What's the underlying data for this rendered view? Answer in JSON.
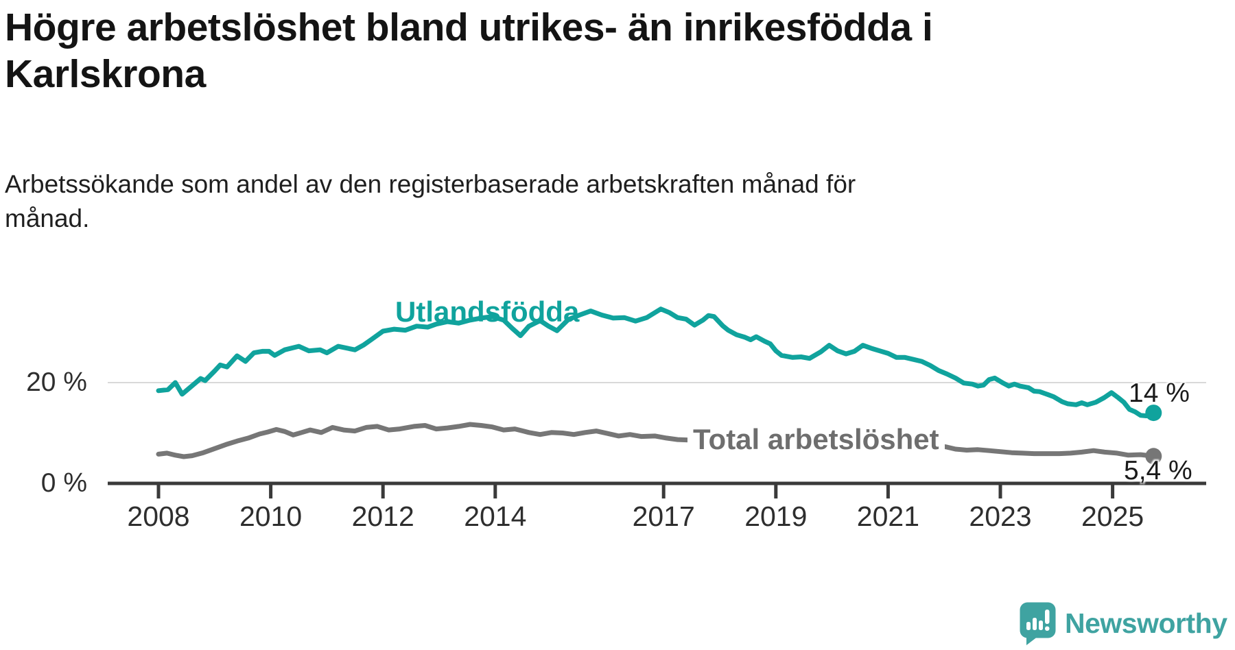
{
  "title": {
    "line1": "Högre arbetslöshet bland utrikes- än inrikesfödda i",
    "line2": "Karlskrona"
  },
  "subtitle": {
    "line1": "Arbetssökande som andel av den registerbaserade arbetskraften månad för",
    "line2": "månad."
  },
  "colors": {
    "teal": "#10a39d",
    "gray": "#767676",
    "axis": "#3a3a3a",
    "grid": "#d9d9d9",
    "value_label": "#1a1a1a",
    "logo_teal": "#3fa3a1"
  },
  "logo": {
    "text": "Newsworthy",
    "icon": "bar-chart-speech-bubble-icon"
  },
  "chart_data": {
    "type": "line",
    "title": "Högre arbetslöshet bland utrikes- än inrikesfödda i Karlskrona",
    "subtitle": "Arbetssökande som andel av den registerbaserade arbetskraften månad för månad.",
    "xlabel": "",
    "ylabel": "",
    "grid": "single horizontal gridline at 20 %",
    "legend_position": "labels drawn on lines",
    "x_axis": {
      "ticks": [
        2008,
        2010,
        2012,
        2014,
        2017,
        2019,
        2021,
        2023,
        2025
      ],
      "tick_labels": [
        "2008",
        "2010",
        "2012",
        "2014",
        "2017",
        "2019",
        "2021",
        "2023",
        "2025"
      ],
      "range": [
        2007.1,
        2026.7
      ]
    },
    "y_axis": {
      "ticks": [
        0,
        20
      ],
      "tick_labels": [
        "0 %",
        "20 %"
      ],
      "range": [
        0,
        36.5
      ]
    },
    "series": [
      {
        "name": "Utlandsfödda",
        "color": "#10a39d",
        "end_label": "14 %",
        "end_value": 14.0,
        "points": [
          [
            2008.0,
            18.4
          ],
          [
            2008.17,
            18.6
          ],
          [
            2008.3,
            20.0
          ],
          [
            2008.42,
            17.7
          ],
          [
            2008.58,
            19.2
          ],
          [
            2008.75,
            20.8
          ],
          [
            2008.83,
            20.4
          ],
          [
            2009.0,
            22.3
          ],
          [
            2009.1,
            23.5
          ],
          [
            2009.22,
            23.1
          ],
          [
            2009.4,
            25.3
          ],
          [
            2009.55,
            24.2
          ],
          [
            2009.7,
            25.9
          ],
          [
            2009.85,
            26.2
          ],
          [
            2009.97,
            26.2
          ],
          [
            2010.07,
            25.4
          ],
          [
            2010.25,
            26.5
          ],
          [
            2010.5,
            27.2
          ],
          [
            2010.68,
            26.3
          ],
          [
            2010.88,
            26.5
          ],
          [
            2011.0,
            25.9
          ],
          [
            2011.2,
            27.2
          ],
          [
            2011.5,
            26.5
          ],
          [
            2011.66,
            27.5
          ],
          [
            2011.8,
            28.6
          ],
          [
            2012.0,
            30.2
          ],
          [
            2012.2,
            30.6
          ],
          [
            2012.4,
            30.4
          ],
          [
            2012.6,
            31.2
          ],
          [
            2012.8,
            31.0
          ],
          [
            2012.95,
            31.6
          ],
          [
            2013.15,
            32.1
          ],
          [
            2013.35,
            31.8
          ],
          [
            2013.55,
            32.4
          ],
          [
            2013.75,
            32.8
          ],
          [
            2013.95,
            33.1
          ],
          [
            2014.15,
            32.4
          ],
          [
            2014.3,
            30.8
          ],
          [
            2014.45,
            29.3
          ],
          [
            2014.6,
            31.2
          ],
          [
            2014.8,
            32.3
          ],
          [
            2014.95,
            31.2
          ],
          [
            2015.1,
            30.3
          ],
          [
            2015.3,
            32.5
          ],
          [
            2015.5,
            33.4
          ],
          [
            2015.7,
            34.2
          ],
          [
            2015.9,
            33.4
          ],
          [
            2016.1,
            32.8
          ],
          [
            2016.3,
            32.9
          ],
          [
            2016.5,
            32.2
          ],
          [
            2016.7,
            32.9
          ],
          [
            2016.95,
            34.6
          ],
          [
            2017.1,
            33.9
          ],
          [
            2017.25,
            32.9
          ],
          [
            2017.4,
            32.6
          ],
          [
            2017.55,
            31.4
          ],
          [
            2017.7,
            32.4
          ],
          [
            2017.8,
            33.3
          ],
          [
            2017.9,
            33.1
          ],
          [
            2018.05,
            31.3
          ],
          [
            2018.15,
            30.4
          ],
          [
            2018.3,
            29.5
          ],
          [
            2018.45,
            29.0
          ],
          [
            2018.55,
            28.5
          ],
          [
            2018.65,
            29.1
          ],
          [
            2018.8,
            28.2
          ],
          [
            2018.9,
            27.7
          ],
          [
            2019.0,
            26.3
          ],
          [
            2019.1,
            25.4
          ],
          [
            2019.3,
            25.0
          ],
          [
            2019.45,
            25.1
          ],
          [
            2019.6,
            24.8
          ],
          [
            2019.8,
            26.1
          ],
          [
            2019.95,
            27.4
          ],
          [
            2020.1,
            26.3
          ],
          [
            2020.25,
            25.7
          ],
          [
            2020.4,
            26.2
          ],
          [
            2020.55,
            27.4
          ],
          [
            2020.7,
            26.8
          ],
          [
            2020.85,
            26.3
          ],
          [
            2021.0,
            25.8
          ],
          [
            2021.15,
            25.0
          ],
          [
            2021.3,
            25.0
          ],
          [
            2021.45,
            24.6
          ],
          [
            2021.6,
            24.2
          ],
          [
            2021.75,
            23.4
          ],
          [
            2021.9,
            22.4
          ],
          [
            2022.05,
            21.7
          ],
          [
            2022.2,
            20.9
          ],
          [
            2022.35,
            19.9
          ],
          [
            2022.5,
            19.7
          ],
          [
            2022.6,
            19.3
          ],
          [
            2022.7,
            19.5
          ],
          [
            2022.8,
            20.6
          ],
          [
            2022.9,
            20.9
          ],
          [
            2023.05,
            19.9
          ],
          [
            2023.15,
            19.3
          ],
          [
            2023.25,
            19.7
          ],
          [
            2023.35,
            19.3
          ],
          [
            2023.5,
            19.0
          ],
          [
            2023.6,
            18.3
          ],
          [
            2023.7,
            18.2
          ],
          [
            2023.85,
            17.6
          ],
          [
            2023.95,
            17.2
          ],
          [
            2024.1,
            16.2
          ],
          [
            2024.2,
            15.8
          ],
          [
            2024.35,
            15.6
          ],
          [
            2024.45,
            16.0
          ],
          [
            2024.55,
            15.6
          ],
          [
            2024.7,
            16.1
          ],
          [
            2024.85,
            17.0
          ],
          [
            2024.98,
            18.0
          ],
          [
            2025.1,
            17.0
          ],
          [
            2025.2,
            16.1
          ],
          [
            2025.3,
            14.7
          ],
          [
            2025.4,
            14.2
          ],
          [
            2025.5,
            13.5
          ],
          [
            2025.6,
            13.4
          ],
          [
            2025.73,
            14.0
          ]
        ]
      },
      {
        "name": "Total arbetslöshet",
        "color": "#767676",
        "end_label": "5,4 %",
        "end_value": 5.4,
        "points": [
          [
            2008.0,
            5.8
          ],
          [
            2008.15,
            6.0
          ],
          [
            2008.3,
            5.6
          ],
          [
            2008.45,
            5.3
          ],
          [
            2008.6,
            5.5
          ],
          [
            2008.8,
            6.1
          ],
          [
            2009.0,
            6.9
          ],
          [
            2009.2,
            7.7
          ],
          [
            2009.4,
            8.4
          ],
          [
            2009.6,
            9.0
          ],
          [
            2009.8,
            9.8
          ],
          [
            2009.95,
            10.2
          ],
          [
            2010.1,
            10.7
          ],
          [
            2010.25,
            10.3
          ],
          [
            2010.4,
            9.6
          ],
          [
            2010.55,
            10.1
          ],
          [
            2010.7,
            10.6
          ],
          [
            2010.9,
            10.1
          ],
          [
            2011.1,
            11.1
          ],
          [
            2011.3,
            10.6
          ],
          [
            2011.5,
            10.4
          ],
          [
            2011.7,
            11.1
          ],
          [
            2011.9,
            11.3
          ],
          [
            2012.1,
            10.6
          ],
          [
            2012.3,
            10.8
          ],
          [
            2012.55,
            11.3
          ],
          [
            2012.75,
            11.5
          ],
          [
            2012.95,
            10.8
          ],
          [
            2013.15,
            11.0
          ],
          [
            2013.35,
            11.3
          ],
          [
            2013.55,
            11.7
          ],
          [
            2013.75,
            11.5
          ],
          [
            2013.95,
            11.2
          ],
          [
            2014.15,
            10.6
          ],
          [
            2014.35,
            10.8
          ],
          [
            2014.6,
            10.1
          ],
          [
            2014.8,
            9.7
          ],
          [
            2015.0,
            10.1
          ],
          [
            2015.2,
            10.0
          ],
          [
            2015.4,
            9.7
          ],
          [
            2015.6,
            10.1
          ],
          [
            2015.8,
            10.4
          ],
          [
            2016.0,
            9.9
          ],
          [
            2016.2,
            9.4
          ],
          [
            2016.4,
            9.7
          ],
          [
            2016.6,
            9.3
          ],
          [
            2016.85,
            9.4
          ],
          [
            2017.05,
            9.0
          ],
          [
            2017.25,
            8.7
          ],
          [
            2017.45,
            8.6
          ],
          [
            2017.7,
            8.4
          ],
          [
            2018.0,
            8.2
          ],
          [
            2018.4,
            7.9
          ],
          [
            2018.8,
            7.6
          ],
          [
            2019.2,
            7.5
          ],
          [
            2019.6,
            7.7
          ],
          [
            2020.0,
            8.2
          ],
          [
            2020.3,
            8.9
          ],
          [
            2020.6,
            9.2
          ],
          [
            2020.9,
            8.9
          ],
          [
            2021.2,
            8.5
          ],
          [
            2021.5,
            8.1
          ],
          [
            2021.8,
            7.7
          ],
          [
            2022.05,
            7.2
          ],
          [
            2022.2,
            6.8
          ],
          [
            2022.4,
            6.6
          ],
          [
            2022.6,
            6.7
          ],
          [
            2022.8,
            6.5
          ],
          [
            2023.0,
            6.3
          ],
          [
            2023.2,
            6.1
          ],
          [
            2023.4,
            6.0
          ],
          [
            2023.6,
            5.9
          ],
          [
            2023.8,
            5.9
          ],
          [
            2024.05,
            5.9
          ],
          [
            2024.25,
            6.0
          ],
          [
            2024.45,
            6.2
          ],
          [
            2024.66,
            6.5
          ],
          [
            2024.86,
            6.2
          ],
          [
            2025.08,
            6.0
          ],
          [
            2025.28,
            5.6
          ],
          [
            2025.5,
            5.7
          ],
          [
            2025.73,
            5.4
          ]
        ]
      }
    ]
  }
}
